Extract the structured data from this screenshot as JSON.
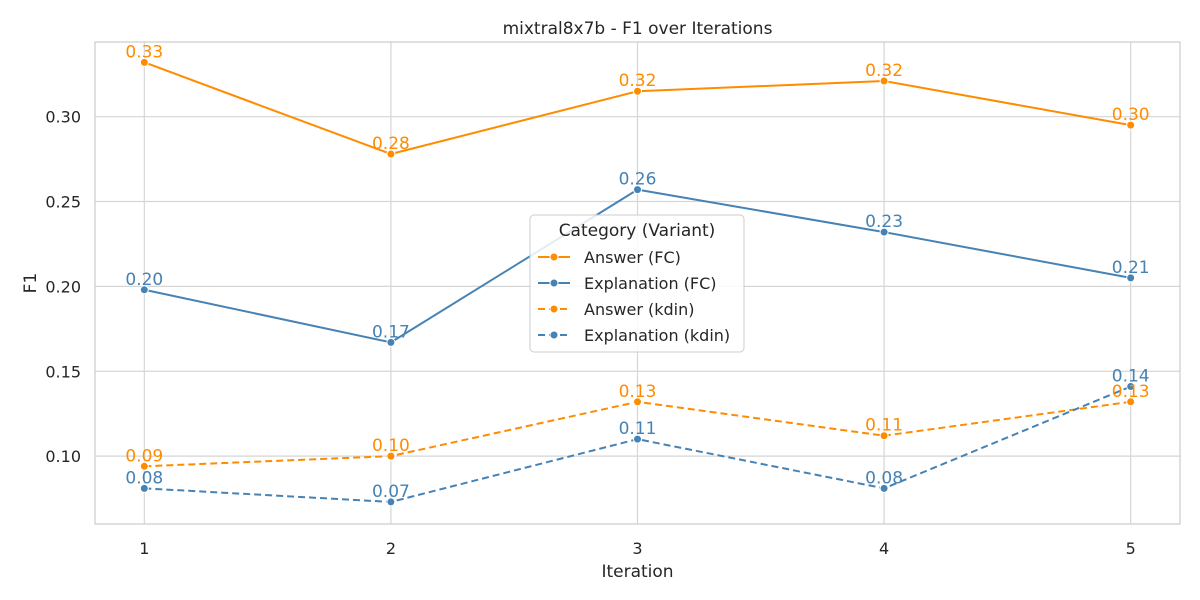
{
  "chart_data": {
    "type": "line",
    "title": "mixtral8x7b - F1 over Iterations",
    "xlabel": "Iteration",
    "ylabel": "F1",
    "x": [
      1,
      2,
      3,
      4,
      5
    ],
    "x_tick_labels": [
      "1",
      "2",
      "3",
      "4",
      "5"
    ],
    "xlim": [
      0.8,
      5.2
    ],
    "ylim": [
      0.06,
      0.344
    ],
    "y_ticks": [
      0.1,
      0.15,
      0.2,
      0.25,
      0.3
    ],
    "y_tick_labels": [
      "0.10",
      "0.15",
      "0.20",
      "0.25",
      "0.30"
    ],
    "grid": true,
    "legend": {
      "title": "Category (Variant)",
      "placement": "center"
    },
    "series": [
      {
        "name": "Answer (FC)",
        "color": "#ff8c00",
        "dash": "solid",
        "values": [
          0.332,
          0.278,
          0.315,
          0.321,
          0.295
        ],
        "labels": [
          "0.33",
          "0.28",
          "0.32",
          "0.32",
          "0.30"
        ]
      },
      {
        "name": "Explanation (FC)",
        "color": "#4682b4",
        "dash": "solid",
        "values": [
          0.198,
          0.167,
          0.257,
          0.232,
          0.205
        ],
        "labels": [
          "0.20",
          "0.17",
          "0.26",
          "0.23",
          "0.21"
        ]
      },
      {
        "name": "Answer (kdin)",
        "color": "#ff8c00",
        "dash": "dashed",
        "values": [
          0.094,
          0.1,
          0.132,
          0.112,
          0.132
        ],
        "labels": [
          "0.09",
          "0.10",
          "0.13",
          "0.11",
          "0.13"
        ]
      },
      {
        "name": "Explanation (kdin)",
        "color": "#4682b4",
        "dash": "dashed",
        "values": [
          0.081,
          0.073,
          0.11,
          0.081,
          0.141
        ],
        "labels": [
          "0.08",
          "0.07",
          "0.11",
          "0.08",
          "0.14"
        ]
      }
    ]
  }
}
